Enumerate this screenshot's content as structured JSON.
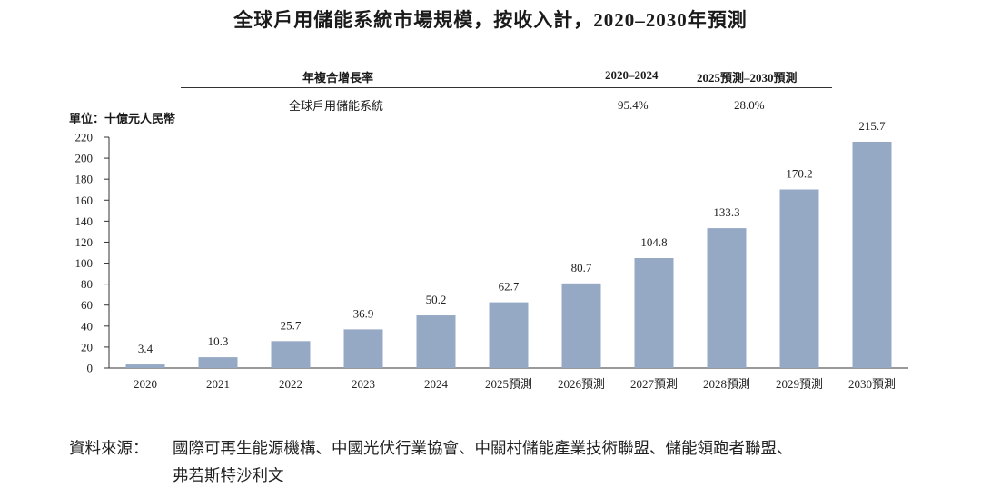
{
  "title": "全球戶用儲能系統市場規模，按收入計，2020–2030年預測",
  "cagr_table": {
    "header_label": "年複合增長率",
    "col1_header": "2020–2024",
    "col2_header": "2025預測–2030預測",
    "row_label": "全球戶用儲能系統",
    "col1_value": "95.4%",
    "col2_value": "28.0%"
  },
  "unit_label": "單位：十億元人民幣",
  "chart_data": {
    "type": "bar",
    "title": "全球戶用儲能系統市場規模，按收入計，2020–2030年預測",
    "xlabel": "",
    "ylabel": "單位：十億元人民幣",
    "ylim": [
      0,
      220
    ],
    "yticks": [
      0,
      20,
      40,
      60,
      80,
      100,
      120,
      140,
      160,
      180,
      200,
      220
    ],
    "categories": [
      "2020",
      "2021",
      "2022",
      "2023",
      "2024",
      "2025預測",
      "2026預測",
      "2027預測",
      "2028預測",
      "2029預測",
      "2030預測"
    ],
    "values": [
      3.4,
      10.3,
      25.7,
      36.9,
      50.2,
      62.7,
      80.7,
      104.8,
      133.3,
      170.2,
      215.7
    ],
    "value_labels": [
      "3.4",
      "10.3",
      "25.7",
      "36.9",
      "50.2",
      "62.7",
      "80.7",
      "104.8",
      "133.3",
      "170.2",
      "215.7"
    ],
    "bar_color": "#95a9c4",
    "grid": false,
    "legend": "none"
  },
  "source": {
    "label": "資料來源：",
    "line1": "國際可再生能源機構、中國光伏行業協會、中關村儲能產業技術聯盟、儲能領跑者聯盟、",
    "line2": "弗若斯特沙利文"
  }
}
